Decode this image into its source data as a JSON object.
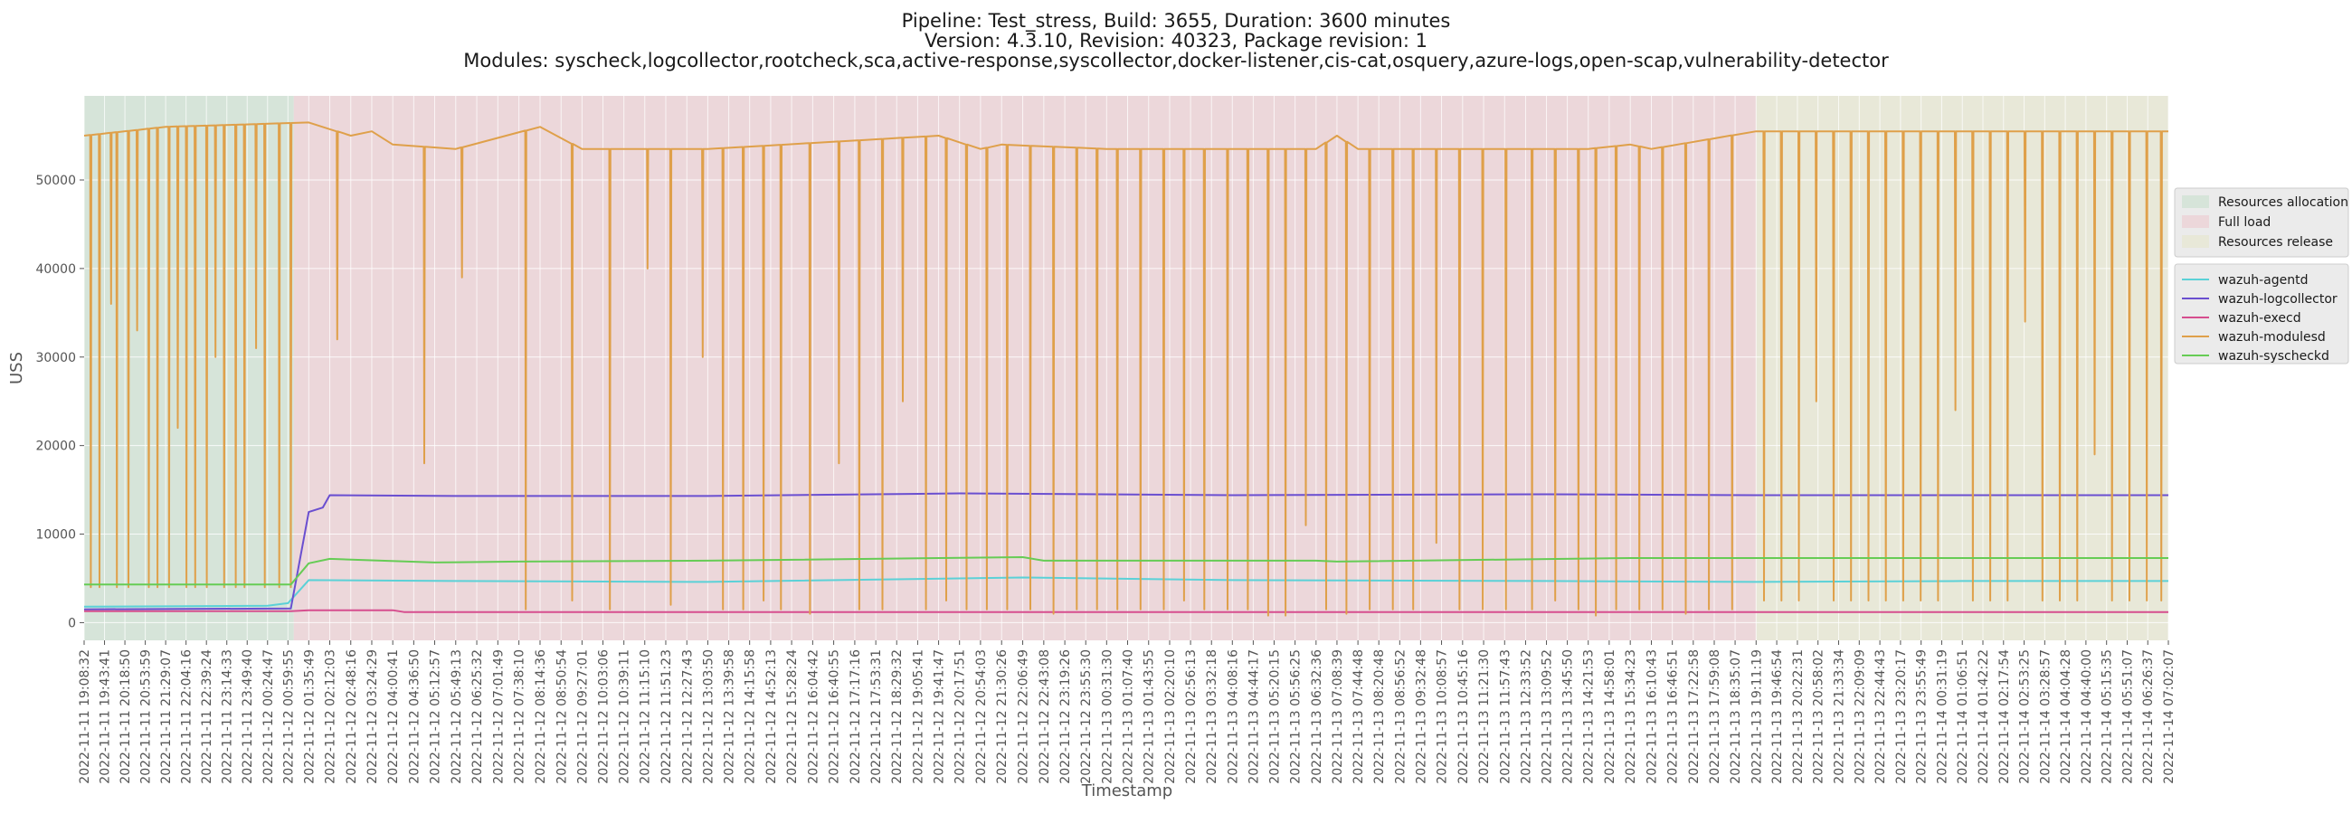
{
  "chart_data": {
    "type": "line",
    "title_lines": [
      "Pipeline: Test_stress, Build: 3655, Duration: 3600 minutes",
      "Version: 4.3.10, Revision: 40323, Package revision: 1",
      "Modules: syscheck,logcollector,rootcheck,sca,active-response,syscollector,docker-listener,cis-cat,osquery,azure-logs,open-scap,vulnerability-detector"
    ],
    "xlabel": "Timestamp",
    "ylabel": "USS",
    "ylim": [
      -2000,
      59500
    ],
    "yticks": [
      0,
      10000,
      20000,
      30000,
      40000,
      50000
    ],
    "grid": true,
    "x_tick_labels": [
      "2022-11-11 19:08:32",
      "2022-11-11 19:43:41",
      "2022-11-11 20:18:50",
      "2022-11-11 20:53:59",
      "2022-11-11 21:29:07",
      "2022-11-11 22:04:16",
      "2022-11-11 22:39:24",
      "2022-11-11 23:14:33",
      "2022-11-11 23:49:40",
      "2022-11-12 00:24:47",
      "2022-11-12 00:59:55",
      "2022-11-12 01:35:49",
      "2022-11-12 02:12:03",
      "2022-11-12 02:48:16",
      "2022-11-12 03:24:29",
      "2022-11-12 04:00:41",
      "2022-11-12 04:36:50",
      "2022-11-12 05:12:57",
      "2022-11-12 05:49:13",
      "2022-11-12 06:25:32",
      "2022-11-12 07:01:49",
      "2022-11-12 07:38:10",
      "2022-11-12 08:14:36",
      "2022-11-12 08:50:54",
      "2022-11-12 09:27:01",
      "2022-11-12 10:03:06",
      "2022-11-12 10:39:11",
      "2022-11-12 11:15:10",
      "2022-11-12 11:51:23",
      "2022-11-12 12:27:43",
      "2022-11-12 13:03:50",
      "2022-11-12 13:39:58",
      "2022-11-12 14:15:58",
      "2022-11-12 14:52:13",
      "2022-11-12 15:28:24",
      "2022-11-12 16:04:42",
      "2022-11-12 16:40:55",
      "2022-11-12 17:17:16",
      "2022-11-12 17:53:31",
      "2022-11-12 18:29:32",
      "2022-11-12 19:05:41",
      "2022-11-12 19:41:47",
      "2022-11-12 20:17:51",
      "2022-11-12 20:54:03",
      "2022-11-12 21:30:26",
      "2022-11-12 22:06:49",
      "2022-11-12 22:43:08",
      "2022-11-12 23:19:26",
      "2022-11-12 23:55:30",
      "2022-11-13 00:31:30",
      "2022-11-13 01:07:40",
      "2022-11-13 01:43:55",
      "2022-11-13 02:20:10",
      "2022-11-13 02:56:13",
      "2022-11-13 03:32:18",
      "2022-11-13 04:08:16",
      "2022-11-13 04:44:17",
      "2022-11-13 05:20:15",
      "2022-11-13 05:56:25",
      "2022-11-13 06:32:36",
      "2022-11-13 07:08:39",
      "2022-11-13 07:44:48",
      "2022-11-13 08:20:48",
      "2022-11-13 08:56:52",
      "2022-11-13 09:32:48",
      "2022-11-13 10:08:57",
      "2022-11-13 10:45:16",
      "2022-11-13 11:21:30",
      "2022-11-13 11:57:43",
      "2022-11-13 12:33:52",
      "2022-11-13 13:09:52",
      "2022-11-13 13:45:50",
      "2022-11-13 14:21:53",
      "2022-11-13 14:58:01",
      "2022-11-13 15:34:23",
      "2022-11-13 16:10:43",
      "2022-11-13 16:46:51",
      "2022-11-13 17:22:58",
      "2022-11-13 17:59:08",
      "2022-11-13 18:35:07",
      "2022-11-13 19:11:19",
      "2022-11-13 19:46:54",
      "2022-11-13 20:22:31",
      "2022-11-13 20:58:02",
      "2022-11-13 21:33:34",
      "2022-11-13 22:09:09",
      "2022-11-13 22:44:43",
      "2022-11-13 23:20:17",
      "2022-11-13 23:55:49",
      "2022-11-14 00:31:19",
      "2022-11-14 01:06:51",
      "2022-11-14 01:42:22",
      "2022-11-14 02:17:54",
      "2022-11-14 02:53:25",
      "2022-11-14 03:28:57",
      "2022-11-14 04:04:28",
      "2022-11-14 04:40:00",
      "2022-11-14 05:15:35",
      "2022-11-14 05:51:07",
      "2022-11-14 06:26:37",
      "2022-11-14 07:02:07"
    ],
    "phases": [
      {
        "name": "Resources allocation",
        "x_start": "2022-11-11 19:08:32",
        "x_end": "2022-11-12 01:10:00",
        "color": "#d6e4d9"
      },
      {
        "name": "Full load",
        "x_start": "2022-11-12 01:10:00",
        "x_end": "2022-11-13 19:11:19",
        "color": "#ecd7da"
      },
      {
        "name": "Resources release",
        "x_start": "2022-11-13 19:11:19",
        "x_end": "2022-11-14 07:02:07",
        "color": "#e8e8d8"
      }
    ],
    "series": [
      {
        "name": "wazuh-agentd",
        "color": "#5bd1d7",
        "x": [
          "2022-11-11 19:08:32",
          "2022-11-12 00:24:47",
          "2022-11-12 01:00:00",
          "2022-11-12 01:35:49",
          "2022-11-12 05:49:13",
          "2022-11-12 13:03:50",
          "2022-11-12 22:06:49",
          "2022-11-13 04:08:16",
          "2022-11-13 13:09:52",
          "2022-11-13 19:11:19",
          "2022-11-14 01:06:51",
          "2022-11-14 07:02:07"
        ],
        "values": [
          1800,
          1900,
          2200,
          4800,
          4700,
          4600,
          5100,
          4800,
          4700,
          4600,
          4700,
          4700
        ]
      },
      {
        "name": "wazuh-logcollector",
        "color": "#6a4fd0",
        "x": [
          "2022-11-11 19:08:32",
          "2022-11-12 01:05:00",
          "2022-11-12 01:35:49",
          "2022-11-12 02:00:00",
          "2022-11-12 02:12:03",
          "2022-11-12 05:49:13",
          "2022-11-12 13:03:50",
          "2022-11-12 20:17:51",
          "2022-11-13 04:08:16",
          "2022-11-13 13:09:52",
          "2022-11-13 19:11:19",
          "2022-11-14 07:02:07"
        ],
        "values": [
          1500,
          1600,
          12500,
          13000,
          14400,
          14300,
          14300,
          14600,
          14400,
          14500,
          14400,
          14400
        ]
      },
      {
        "name": "wazuh-execd",
        "color": "#d64e8e",
        "x": [
          "2022-11-11 19:08:32",
          "2022-11-12 01:05:00",
          "2022-11-12 01:35:49",
          "2022-11-12 04:00:41",
          "2022-11-12 04:20:00",
          "2022-11-12 22:06:49",
          "2022-11-13 19:11:19",
          "2022-11-14 07:02:07"
        ],
        "values": [
          1300,
          1300,
          1400,
          1400,
          1200,
          1200,
          1200,
          1200
        ]
      },
      {
        "name": "wazuh-modulesd",
        "color": "#dfa04a",
        "x": [
          "2022-11-11 19:08:32",
          "2022-11-11 21:29:07",
          "2022-11-12 01:35:49",
          "2022-11-12 02:48:16",
          "2022-11-12 03:24:29",
          "2022-11-12 04:00:41",
          "2022-11-12 05:49:13",
          "2022-11-12 08:14:36",
          "2022-11-12 09:27:01",
          "2022-11-12 13:03:50",
          "2022-11-12 19:41:47",
          "2022-11-12 20:54:03",
          "2022-11-12 21:30:26",
          "2022-11-13 00:31:30",
          "2022-11-13 06:32:36",
          "2022-11-13 07:08:39",
          "2022-11-13 07:44:48",
          "2022-11-13 14:21:53",
          "2022-11-13 15:34:23",
          "2022-11-13 16:10:43",
          "2022-11-13 19:11:19",
          "2022-11-14 07:02:07"
        ],
        "values": [
          55000,
          56000,
          56500,
          55000,
          55500,
          54000,
          53500,
          56000,
          53500,
          53500,
          55000,
          53500,
          54000,
          53500,
          53500,
          55000,
          53500,
          53500,
          54000,
          53500,
          55500,
          55500
        ]
      },
      {
        "name": "wazuh-syscheckd",
        "color": "#66cc55",
        "x": [
          "2022-11-11 19:08:32",
          "2022-11-12 01:05:00",
          "2022-11-12 01:35:49",
          "2022-11-12 02:12:03",
          "2022-11-12 05:12:57",
          "2022-11-12 07:38:10",
          "2022-11-12 13:03:50",
          "2022-11-12 22:06:49",
          "2022-11-12 22:43:08",
          "2022-11-13 06:32:36",
          "2022-11-13 07:08:39",
          "2022-11-13 15:34:23",
          "2022-11-13 19:11:19",
          "2022-11-14 07:02:07"
        ],
        "values": [
          4300,
          4300,
          6700,
          7200,
          6800,
          6900,
          7000,
          7400,
          7000,
          7000,
          6900,
          7300,
          7300,
          7300
        ]
      }
    ],
    "modulesd_dips": [
      {
        "x": "2022-11-11 19:20:00",
        "value": 4000
      },
      {
        "x": "2022-11-11 19:35:00",
        "value": 4000
      },
      {
        "x": "2022-11-11 19:55:00",
        "value": 36000
      },
      {
        "x": "2022-11-11 20:05:00",
        "value": 4000
      },
      {
        "x": "2022-11-11 20:25:00",
        "value": 4000
      },
      {
        "x": "2022-11-11 20:40:00",
        "value": 33000
      },
      {
        "x": "2022-11-11 21:00:00",
        "value": 4000
      },
      {
        "x": "2022-11-11 21:15:00",
        "value": 4000
      },
      {
        "x": "2022-11-11 21:35:00",
        "value": 4000
      },
      {
        "x": "2022-11-11 21:50:00",
        "value": 22000
      },
      {
        "x": "2022-11-11 22:05:00",
        "value": 4000
      },
      {
        "x": "2022-11-11 22:20:00",
        "value": 4000
      },
      {
        "x": "2022-11-11 22:40:00",
        "value": 4000
      },
      {
        "x": "2022-11-11 22:55:00",
        "value": 30000
      },
      {
        "x": "2022-11-11 23:10:00",
        "value": 4000
      },
      {
        "x": "2022-11-11 23:30:00",
        "value": 4000
      },
      {
        "x": "2022-11-11 23:45:00",
        "value": 4000
      },
      {
        "x": "2022-11-12 00:05:00",
        "value": 31000
      },
      {
        "x": "2022-11-12 00:20:00",
        "value": 4000
      },
      {
        "x": "2022-11-12 00:45:00",
        "value": 4000
      },
      {
        "x": "2022-11-12 01:05:00",
        "value": 4000
      },
      {
        "x": "2022-11-12 02:25:00",
        "value": 32000
      },
      {
        "x": "2022-11-12 04:55:00",
        "value": 18000
      },
      {
        "x": "2022-11-12 06:00:00",
        "value": 39000
      },
      {
        "x": "2022-11-12 07:50:00",
        "value": 1500
      },
      {
        "x": "2022-11-12 09:10:00",
        "value": 2500
      },
      {
        "x": "2022-11-12 10:15:00",
        "value": 1500
      },
      {
        "x": "2022-11-12 11:20:00",
        "value": 40000
      },
      {
        "x": "2022-11-12 12:00:00",
        "value": 2000
      },
      {
        "x": "2022-11-12 12:55:00",
        "value": 30000
      },
      {
        "x": "2022-11-12 13:30:00",
        "value": 1500
      },
      {
        "x": "2022-11-12 14:05:00",
        "value": 1500
      },
      {
        "x": "2022-11-12 14:40:00",
        "value": 2500
      },
      {
        "x": "2022-11-12 15:10:00",
        "value": 1500
      },
      {
        "x": "2022-11-12 16:00:00",
        "value": 1000
      },
      {
        "x": "2022-11-12 16:50:00",
        "value": 18000
      },
      {
        "x": "2022-11-12 17:25:00",
        "value": 1500
      },
      {
        "x": "2022-11-12 18:05:00",
        "value": 1500
      },
      {
        "x": "2022-11-12 18:40:00",
        "value": 25000
      },
      {
        "x": "2022-11-12 19:20:00",
        "value": 1500
      },
      {
        "x": "2022-11-12 19:55:00",
        "value": 2500
      },
      {
        "x": "2022-11-12 20:30:00",
        "value": 1500
      },
      {
        "x": "2022-11-12 21:05:00",
        "value": 1500
      },
      {
        "x": "2022-11-12 21:40:00",
        "value": 1500
      },
      {
        "x": "2022-11-12 22:20:00",
        "value": 1500
      },
      {
        "x": "2022-11-12 23:00:00",
        "value": 1000
      },
      {
        "x": "2022-11-12 23:40:00",
        "value": 1500
      },
      {
        "x": "2022-11-13 00:15:00",
        "value": 1500
      },
      {
        "x": "2022-11-13 00:50:00",
        "value": 1500
      },
      {
        "x": "2022-11-13 01:30:00",
        "value": 1500
      },
      {
        "x": "2022-11-13 02:10:00",
        "value": 1500
      },
      {
        "x": "2022-11-13 02:45:00",
        "value": 2500
      },
      {
        "x": "2022-11-13 03:20:00",
        "value": 1500
      },
      {
        "x": "2022-11-13 04:00:00",
        "value": 1500
      },
      {
        "x": "2022-11-13 04:35:00",
        "value": 1500
      },
      {
        "x": "2022-11-13 05:10:00",
        "value": 800
      },
      {
        "x": "2022-11-13 05:40:00",
        "value": 800
      },
      {
        "x": "2022-11-13 06:15:00",
        "value": 11000
      },
      {
        "x": "2022-11-13 06:50:00",
        "value": 1500
      },
      {
        "x": "2022-11-13 07:25:00",
        "value": 1000
      },
      {
        "x": "2022-11-13 08:05:00",
        "value": 1500
      },
      {
        "x": "2022-11-13 08:45:00",
        "value": 1500
      },
      {
        "x": "2022-11-13 09:20:00",
        "value": 1500
      },
      {
        "x": "2022-11-13 10:00:00",
        "value": 9000
      },
      {
        "x": "2022-11-13 10:40:00",
        "value": 1500
      },
      {
        "x": "2022-11-13 11:20:00",
        "value": 1500
      },
      {
        "x": "2022-11-13 12:00:00",
        "value": 1500
      },
      {
        "x": "2022-11-13 12:45:00",
        "value": 1500
      },
      {
        "x": "2022-11-13 13:25:00",
        "value": 2500
      },
      {
        "x": "2022-11-13 14:05:00",
        "value": 1500
      },
      {
        "x": "2022-11-13 14:35:00",
        "value": 800
      },
      {
        "x": "2022-11-13 15:10:00",
        "value": 1500
      },
      {
        "x": "2022-11-13 15:50:00",
        "value": 1500
      },
      {
        "x": "2022-11-13 16:30:00",
        "value": 1500
      },
      {
        "x": "2022-11-13 17:10:00",
        "value": 1000
      },
      {
        "x": "2022-11-13 17:50:00",
        "value": 1500
      },
      {
        "x": "2022-11-13 18:30:00",
        "value": 1500
      },
      {
        "x": "2022-11-13 19:25:00",
        "value": 2500
      },
      {
        "x": "2022-11-13 19:55:00",
        "value": 2500
      },
      {
        "x": "2022-11-13 20:25:00",
        "value": 2500
      },
      {
        "x": "2022-11-13 20:55:00",
        "value": 25000
      },
      {
        "x": "2022-11-13 21:25:00",
        "value": 2500
      },
      {
        "x": "2022-11-13 21:55:00",
        "value": 2500
      },
      {
        "x": "2022-11-13 22:25:00",
        "value": 2500
      },
      {
        "x": "2022-11-13 22:55:00",
        "value": 2500
      },
      {
        "x": "2022-11-13 23:25:00",
        "value": 2500
      },
      {
        "x": "2022-11-13 23:55:00",
        "value": 2500
      },
      {
        "x": "2022-11-14 00:25:00",
        "value": 2500
      },
      {
        "x": "2022-11-14 00:55:00",
        "value": 24000
      },
      {
        "x": "2022-11-14 01:25:00",
        "value": 2500
      },
      {
        "x": "2022-11-14 01:55:00",
        "value": 2500
      },
      {
        "x": "2022-11-14 02:25:00",
        "value": 2500
      },
      {
        "x": "2022-11-14 02:55:00",
        "value": 34000
      },
      {
        "x": "2022-11-14 03:25:00",
        "value": 2500
      },
      {
        "x": "2022-11-14 03:55:00",
        "value": 2500
      },
      {
        "x": "2022-11-14 04:25:00",
        "value": 2500
      },
      {
        "x": "2022-11-14 04:55:00",
        "value": 19000
      },
      {
        "x": "2022-11-14 05:25:00",
        "value": 2500
      },
      {
        "x": "2022-11-14 05:55:00",
        "value": 2500
      },
      {
        "x": "2022-11-14 06:25:00",
        "value": 2500
      },
      {
        "x": "2022-11-14 06:50:00",
        "value": 2500
      }
    ]
  }
}
